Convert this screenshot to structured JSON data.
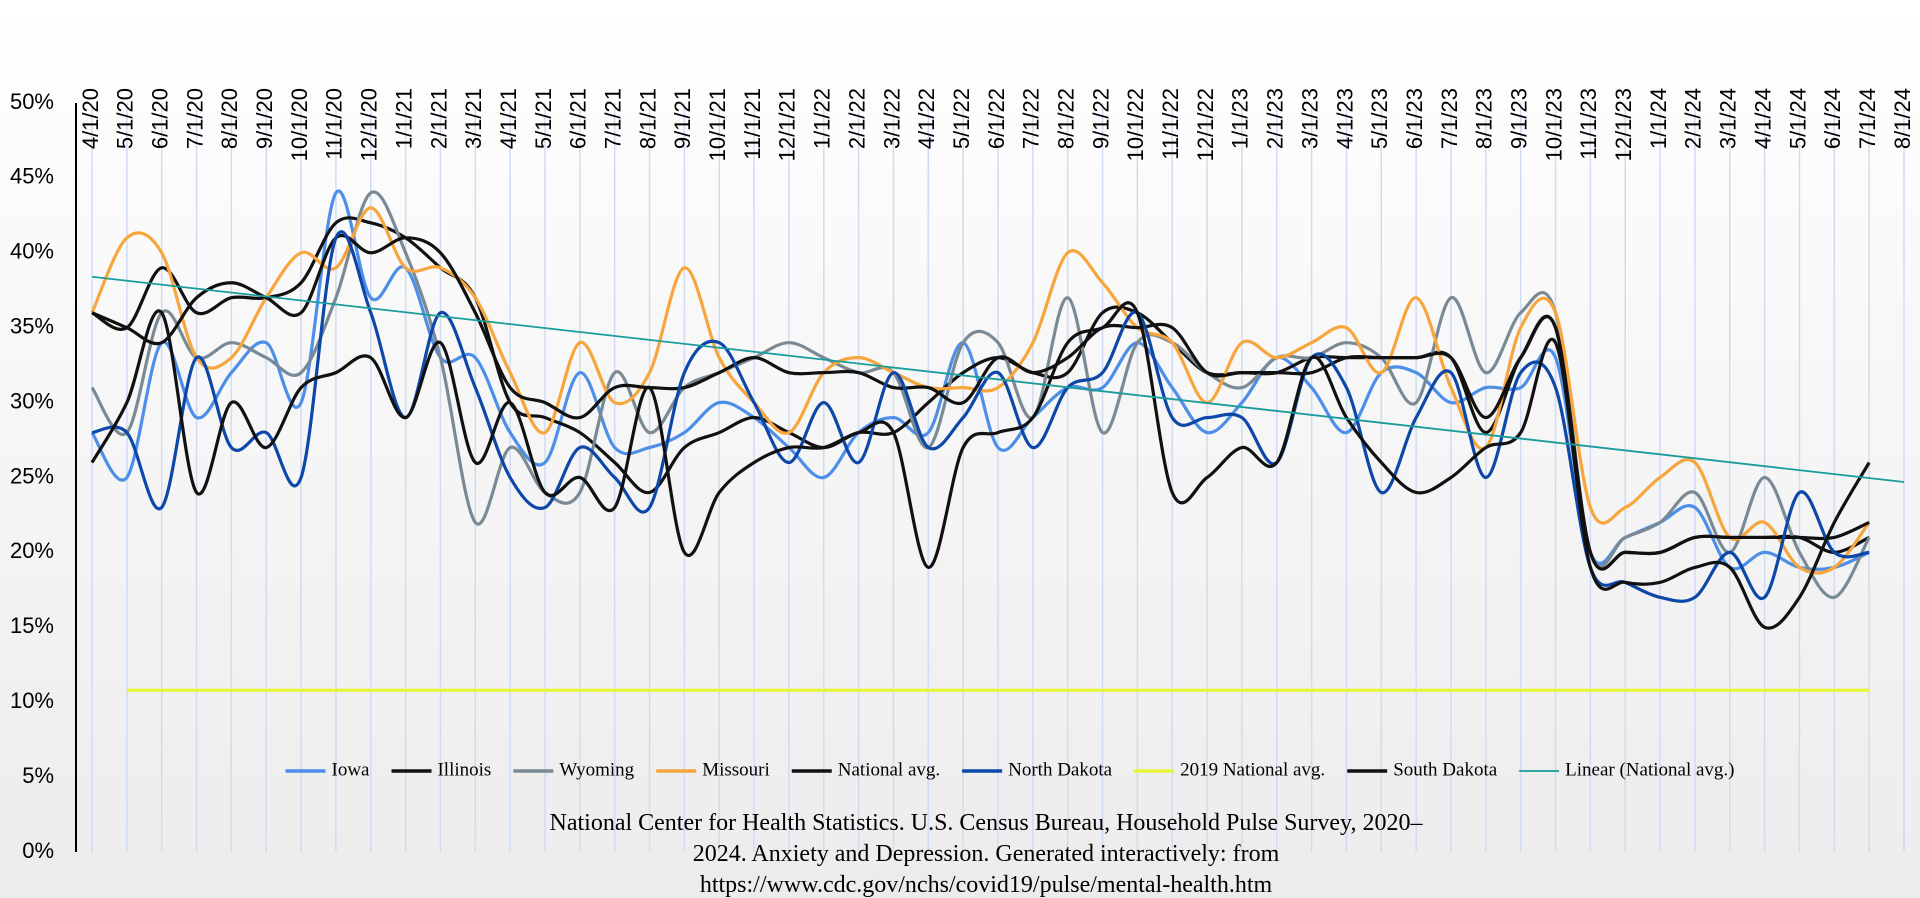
{
  "chart_data": {
    "type": "line",
    "categories": [
      "4/1/20",
      "5/1/20",
      "6/1/20",
      "7/1/20",
      "8/1/20",
      "9/1/20",
      "10/1/20",
      "11/1/20",
      "12/1/20",
      "1/1/21",
      "2/1/21",
      "3/1/21",
      "4/1/21",
      "5/1/21",
      "6/1/21",
      "7/1/21",
      "8/1/21",
      "9/1/21",
      "10/1/21",
      "11/1/21",
      "12/1/21",
      "1/1/22",
      "2/1/22",
      "3/1/22",
      "4/1/22",
      "5/1/22",
      "6/1/22",
      "7/1/22",
      "8/1/22",
      "9/1/22",
      "10/1/22",
      "11/1/22",
      "12/1/22",
      "1/1/23",
      "2/1/23",
      "3/1/23",
      "4/1/23",
      "5/1/23",
      "6/1/23",
      "7/1/23",
      "8/1/23",
      "9/1/23",
      "10/1/23",
      "11/1/23",
      "12/1/23",
      "1/1/24",
      "2/1/24",
      "3/1/24",
      "4/1/24",
      "5/1/24",
      "6/1/24",
      "7/1/24",
      "8/1/24"
    ],
    "ylim": [
      0,
      50
    ],
    "yticks": [
      {
        "value": 0,
        "label": "0%"
      },
      {
        "value": 5,
        "label": "5%"
      },
      {
        "value": 10,
        "label": "10%"
      },
      {
        "value": 15,
        "label": "15%"
      },
      {
        "value": 20,
        "label": "20%"
      },
      {
        "value": 25,
        "label": "25%"
      },
      {
        "value": 30,
        "label": "30%"
      },
      {
        "value": 35,
        "label": "35%"
      },
      {
        "value": 40,
        "label": "40%"
      },
      {
        "value": 45,
        "label": "45%"
      },
      {
        "value": 50,
        "label": "50%"
      }
    ],
    "xgrid": true,
    "smooth": true,
    "series": [
      {
        "name": "Iowa",
        "color": "#4d8fe8",
        "values": [
          28,
          25,
          34,
          29,
          32,
          34,
          30,
          44,
          37,
          39,
          33,
          33,
          28,
          26,
          32,
          27,
          27,
          28,
          30,
          29,
          27,
          25,
          28,
          29,
          28,
          34,
          27,
          29,
          31,
          31,
          34,
          31,
          28,
          30,
          33,
          31,
          28,
          32,
          32,
          30,
          31,
          31,
          33,
          20,
          21,
          22,
          23,
          19,
          20,
          19,
          19,
          20,
          null
        ]
      },
      {
        "name": "Illinois",
        "color": "#111111",
        "values": [
          36,
          35,
          39,
          36,
          37,
          37,
          38,
          42,
          42,
          41,
          39,
          37,
          30,
          29,
          28,
          26,
          24,
          27,
          28,
          29,
          28,
          27,
          28,
          28,
          30,
          32,
          33,
          32,
          32,
          36,
          36,
          34,
          32,
          32,
          32,
          33,
          33,
          33,
          33,
          33,
          28,
          33,
          35,
          20,
          20,
          20,
          21,
          21,
          21,
          21,
          20,
          21,
          null
        ]
      },
      {
        "name": "Wyoming",
        "color": "#7a8a94",
        "values": [
          31,
          28,
          36,
          33,
          34,
          33,
          32,
          37,
          44,
          40,
          33,
          22,
          27,
          24,
          24,
          32,
          28,
          31,
          32,
          33,
          34,
          33,
          32,
          32,
          27,
          34,
          34,
          29,
          37,
          28,
          34,
          34,
          32,
          31,
          33,
          33,
          34,
          33,
          30,
          37,
          32,
          36,
          36,
          20,
          21,
          22,
          24,
          20,
          25,
          20,
          17,
          21,
          null
        ]
      },
      {
        "name": "Missouri",
        "color": "#f7a53c",
        "values": [
          36,
          41,
          40,
          33,
          33,
          37,
          40,
          39,
          43,
          39,
          39,
          37,
          32,
          28,
          34,
          30,
          32,
          39,
          33,
          30,
          28,
          32,
          33,
          32,
          31,
          31,
          31,
          34,
          40,
          38,
          35,
          34,
          30,
          34,
          33,
          34,
          35,
          32,
          37,
          31,
          27,
          35,
          36,
          23,
          23,
          25,
          26,
          21,
          22,
          19,
          19,
          22,
          null
        ]
      },
      {
        "name": "National avg.",
        "color": "#111111",
        "values": [
          36,
          35,
          34,
          37,
          38,
          37,
          36,
          41,
          40,
          41,
          40,
          36,
          31,
          30,
          29,
          31,
          31,
          31,
          32,
          33,
          32,
          32,
          32,
          31,
          31,
          30,
          33,
          32,
          33,
          35,
          35,
          35,
          32,
          32,
          32,
          32,
          33,
          33,
          33,
          33,
          29,
          33,
          35,
          20,
          20,
          20,
          21,
          21,
          21,
          21,
          21,
          22,
          null
        ]
      },
      {
        "name": "North Dakota",
        "color": "#0d47a8",
        "values": [
          28,
          28,
          23,
          33,
          27,
          28,
          25,
          41,
          36,
          29,
          36,
          31,
          25,
          23,
          27,
          25,
          23,
          32,
          34,
          30,
          26,
          30,
          26,
          32,
          27,
          29,
          32,
          27,
          31,
          32,
          36,
          29,
          29,
          29,
          26,
          33,
          31,
          24,
          29,
          32,
          25,
          32,
          31,
          19,
          18,
          17,
          17,
          20,
          17,
          24,
          20,
          20,
          null
        ]
      },
      {
        "name": "2019 National avg.",
        "color": "#e8f53c",
        "values": [
          null,
          10.8,
          10.8,
          10.8,
          10.8,
          10.8,
          10.8,
          10.8,
          10.8,
          10.8,
          10.8,
          10.8,
          10.8,
          10.8,
          10.8,
          10.8,
          10.8,
          10.8,
          10.8,
          10.8,
          10.8,
          10.8,
          10.8,
          10.8,
          10.8,
          10.8,
          10.8,
          10.8,
          10.8,
          10.8,
          10.8,
          10.8,
          10.8,
          10.8,
          10.8,
          10.8,
          10.8,
          10.8,
          10.8,
          10.8,
          10.8,
          10.8,
          10.8,
          10.8,
          10.8,
          10.8,
          10.8,
          10.8,
          10.8,
          10.8,
          10.8,
          10.8,
          null
        ]
      },
      {
        "name": "South Dakota",
        "color": "#111111",
        "values": [
          26,
          30,
          36,
          24,
          30,
          27,
          31,
          32,
          33,
          29,
          34,
          26,
          30,
          24,
          25,
          23,
          31,
          20,
          24,
          26,
          27,
          27,
          28,
          28,
          19,
          27,
          28,
          29,
          34,
          35,
          36,
          24,
          25,
          27,
          26,
          33,
          29,
          26,
          24,
          25,
          27,
          28,
          34,
          19,
          18,
          18,
          19,
          19,
          15,
          17,
          22,
          26,
          null
        ]
      }
    ],
    "trendline": {
      "name": "Linear (National avg.)",
      "color": "#1a9c9c",
      "start": 38.4,
      "end": 24.7
    },
    "source": "National Center for Health Statistics. U.S. Census Bureau, Household Pulse Survey, 2020–2024. Anxiety and Depression. Generated interactively: from https://www.cdc.gov/nchs/covid19/pulse/mental-health.htm"
  }
}
